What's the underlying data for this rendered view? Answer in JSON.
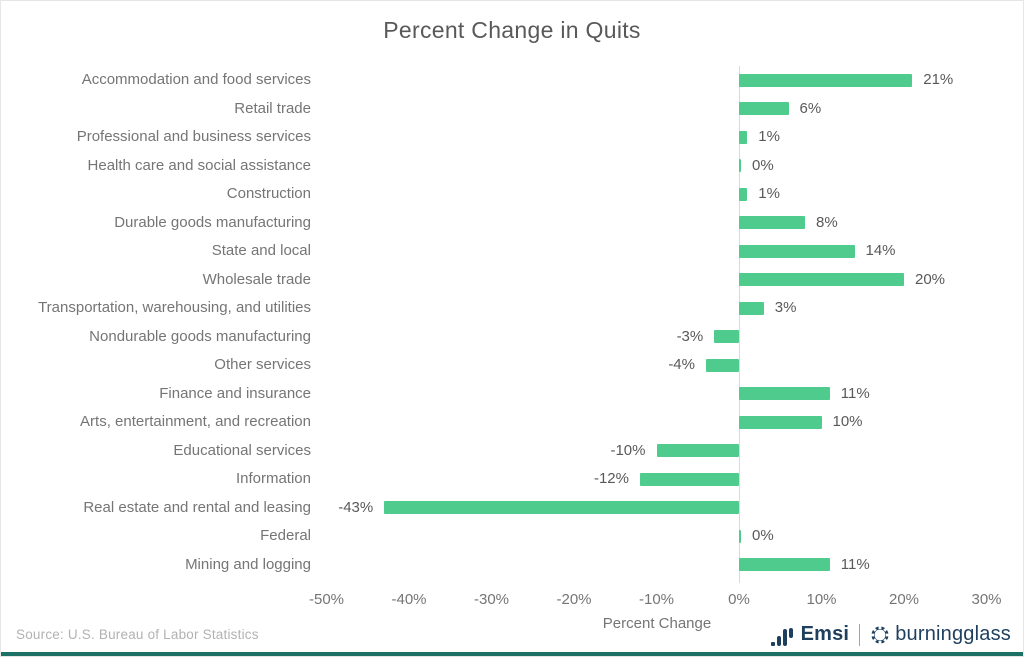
{
  "title": "Percent Change in Quits",
  "source_note": "Source:  U.S. Bureau of Labor Statistics",
  "colors": {
    "bar": "#4ecb8d",
    "title_text": "#595959",
    "label_text": "#757575",
    "value_text": "#595959",
    "axis_line": "#d9d9d9",
    "brand_navy": "#1e3f5e",
    "footer_strip": "#1d7164"
  },
  "chart_data": {
    "type": "bar",
    "orientation": "horizontal",
    "title": "Percent Change in Quits",
    "xlabel": "Percent Change",
    "ylabel": "",
    "xlim": [
      -50,
      30
    ],
    "grid": false,
    "legend": null,
    "categories": [
      "Accommodation and food services",
      "Retail trade",
      "Professional and business services",
      "Health care and social assistance",
      "Construction",
      "Durable goods manufacturing",
      "State and local",
      "Wholesale trade",
      "Transportation, warehousing, and utilities",
      "Nondurable goods manufacturing",
      "Other services",
      "Finance and insurance",
      "Arts, entertainment, and recreation",
      "Educational services",
      "Information",
      "Real estate and rental and leasing",
      "Federal",
      "Mining and logging"
    ],
    "values": [
      21,
      6,
      1,
      0,
      1,
      8,
      14,
      20,
      3,
      -3,
      -4,
      11,
      10,
      -10,
      -12,
      -43,
      0,
      11
    ],
    "value_labels": [
      "21%",
      "6%",
      "1%",
      "0%",
      "1%",
      "8%",
      "14%",
      "20%",
      "3%",
      "-3%",
      "-4%",
      "11%",
      "10%",
      "-10%",
      "-12%",
      "-43%",
      "0%",
      "11%"
    ],
    "xticks": [
      {
        "value": -50,
        "label": "-50%"
      },
      {
        "value": -40,
        "label": "-40%"
      },
      {
        "value": -30,
        "label": "-30%"
      },
      {
        "value": -20,
        "label": "-20%"
      },
      {
        "value": -10,
        "label": "-10%"
      },
      {
        "value": 0,
        "label": "0%"
      },
      {
        "value": 10,
        "label": "10%"
      },
      {
        "value": 20,
        "label": "20%"
      },
      {
        "value": 30,
        "label": "30%"
      }
    ]
  },
  "footer": {
    "emsi_label": "Emsi",
    "burningglass_label": "burningglass"
  }
}
